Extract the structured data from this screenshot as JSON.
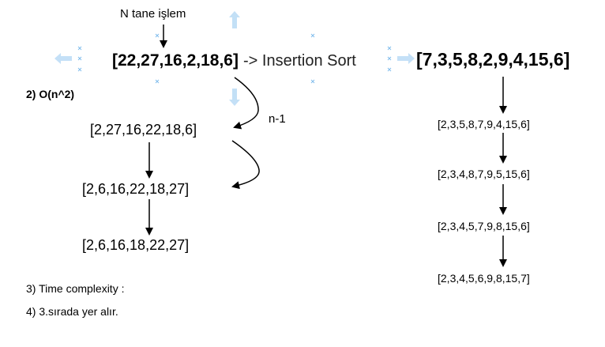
{
  "top_note": "N tane işlem",
  "main_array": "[22,27,16,2,18,6]",
  "arrow_label": "-> Insertion Sort",
  "right_array": "[7,3,5,8,2,9,4,15,6]",
  "question2": "2) O(n^2)",
  "n_minus_1": "n-1",
  "left_steps": [
    "[2,27,16,22,18,6]",
    "[2,6,16,22,18,27]",
    "[2,6,16,18,22,27]"
  ],
  "right_steps": [
    "[2,3,5,8,7,9,4,15,6]",
    "[2,3,4,8,7,9,5,15,6]",
    "[2,3,4,5,7,9,8,15,6]",
    "[2,3,4,5,6,9,8,15,7]"
  ],
  "question3": "3) Time complexity :",
  "question4": "4) 3.sırada yer alır.",
  "colors": {
    "text": "#000000",
    "handle": "#57a7e8",
    "arrow": "#000000"
  }
}
